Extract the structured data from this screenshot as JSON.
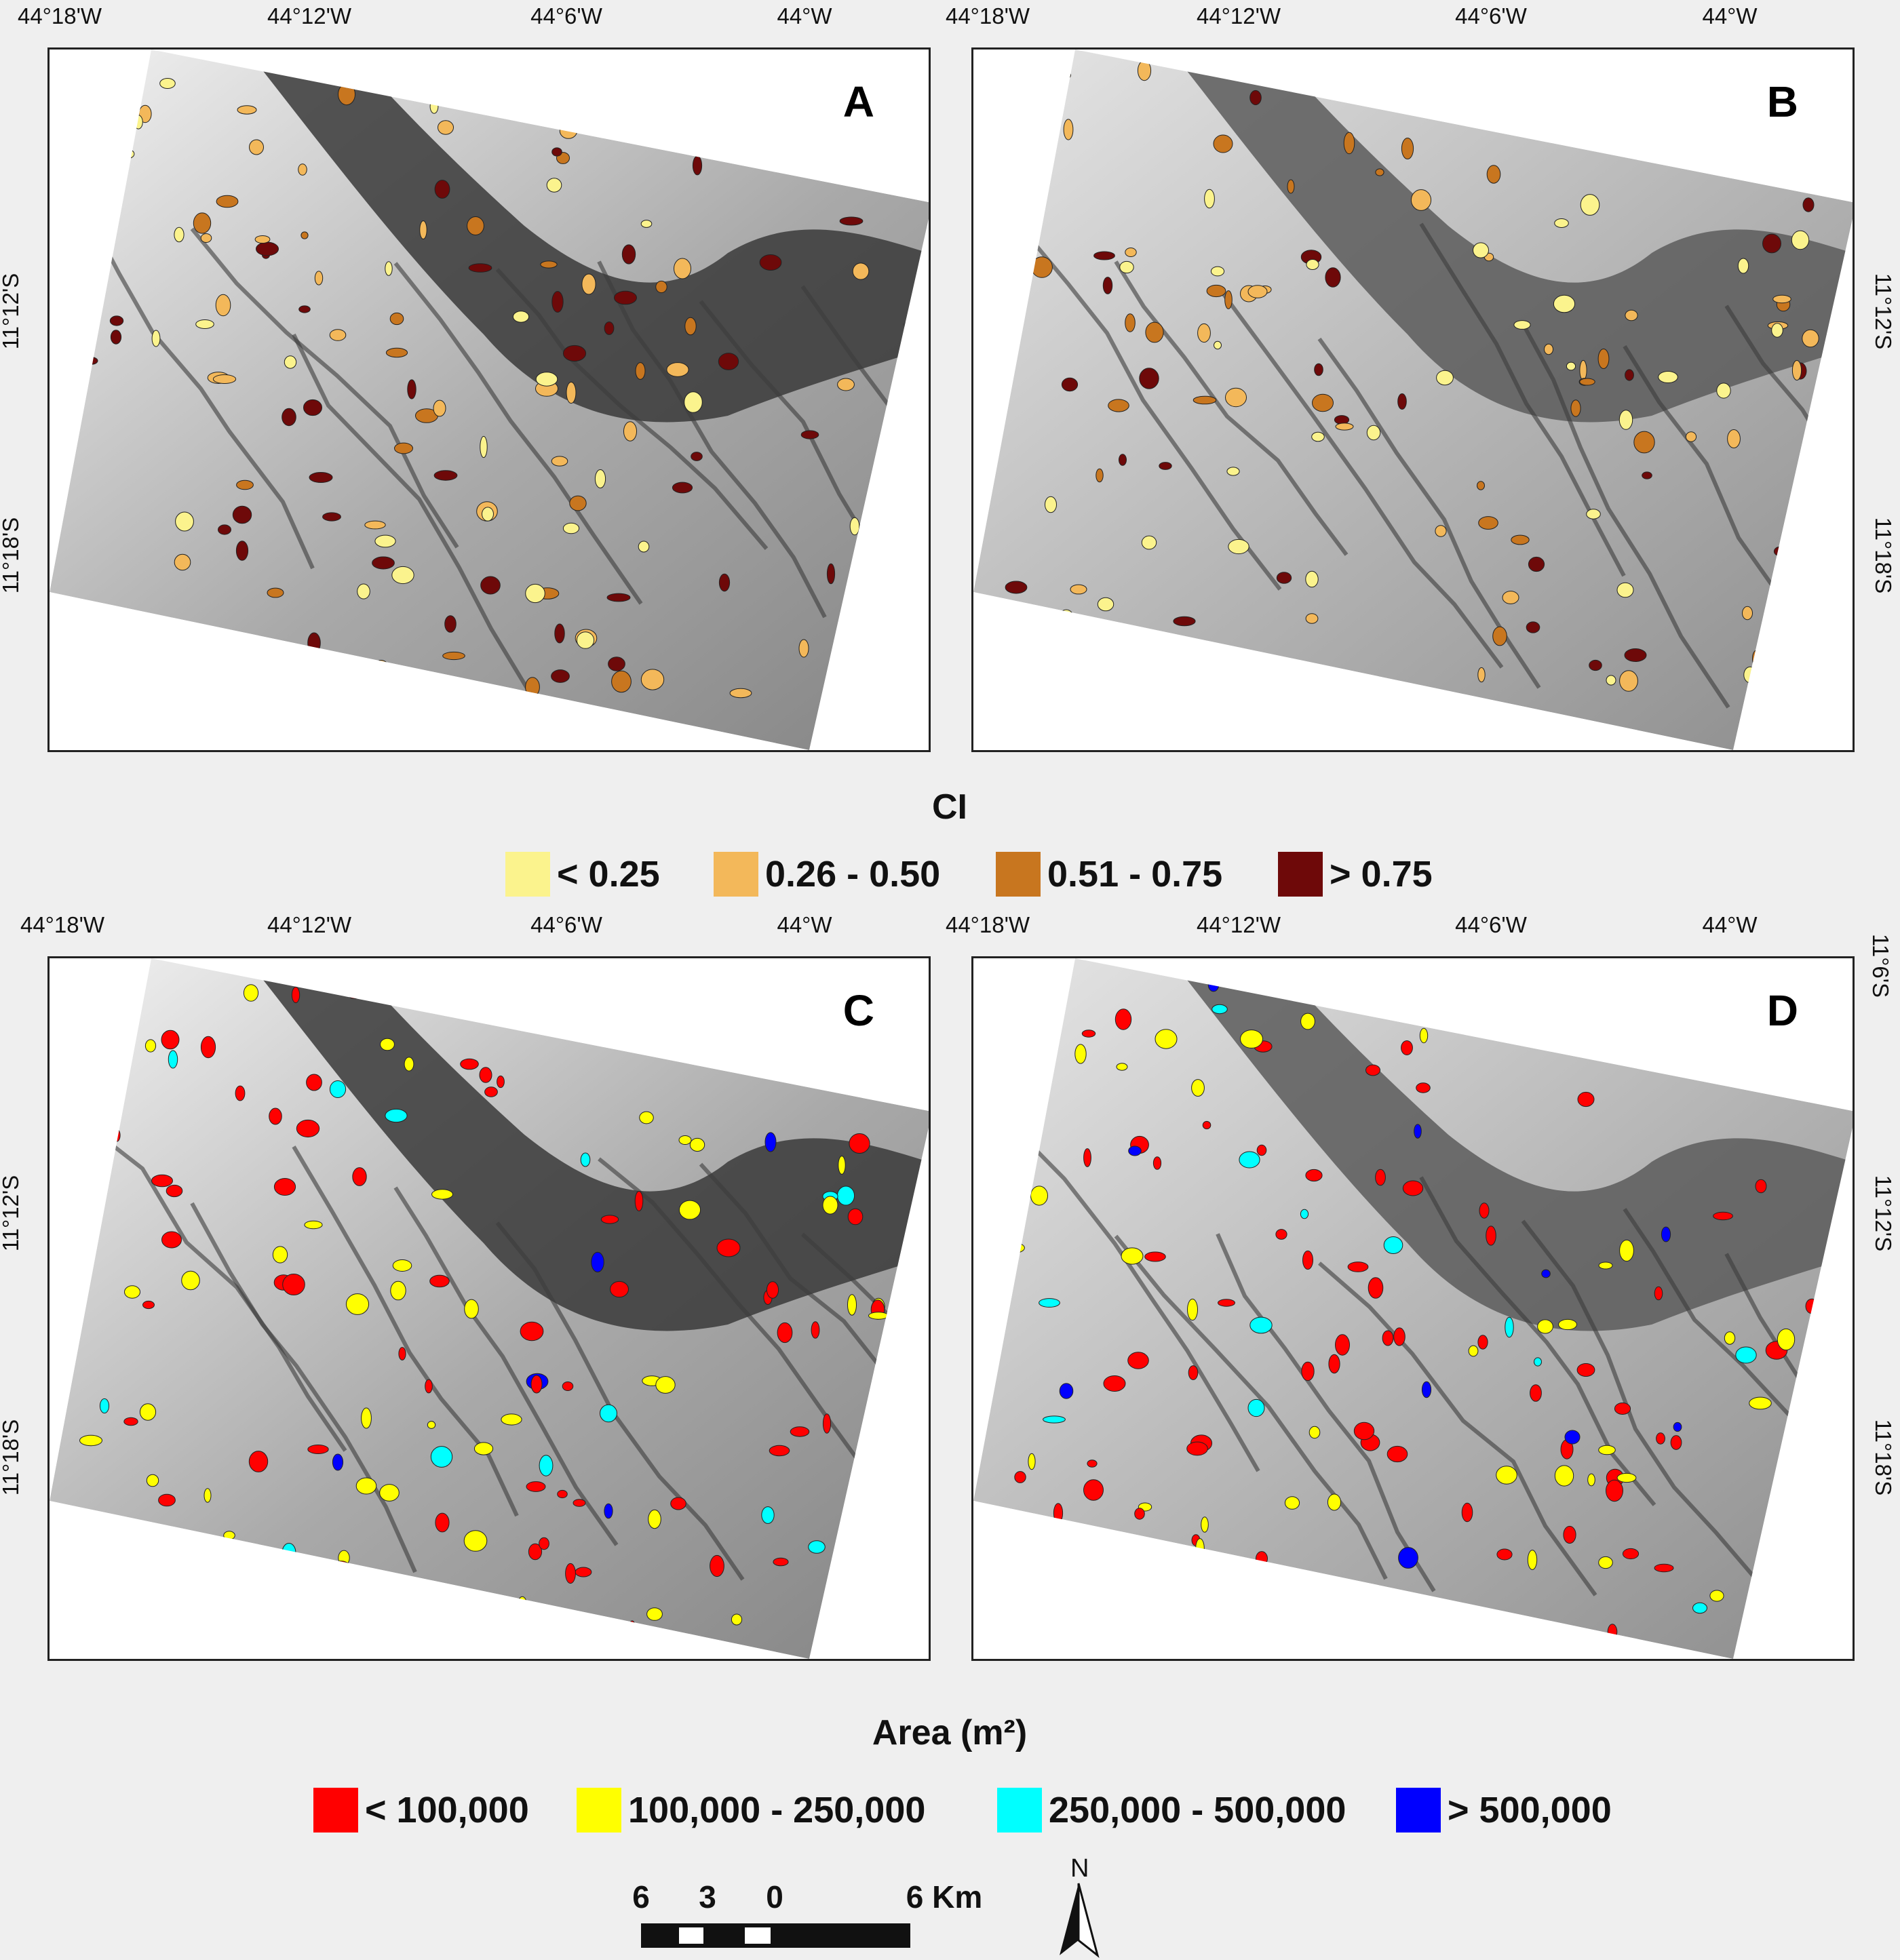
{
  "panels": [
    {
      "label": "A",
      "legend": "ci"
    },
    {
      "label": "B",
      "legend": "ci"
    },
    {
      "label": "C",
      "legend": "area"
    },
    {
      "label": "D",
      "legend": "area"
    }
  ],
  "axes": {
    "lon_ticks": [
      "44°18'W",
      "44°12'W",
      "44°6'W",
      "44°W"
    ],
    "lat_ticks": [
      "11°12'S",
      "11°18'S"
    ],
    "lat_extra_d": "11°6'S"
  },
  "ci_legend": {
    "title": "CI",
    "items": [
      {
        "label": "< 0.25",
        "color": "#fbf38d"
      },
      {
        "label": "0.26 - 0.50",
        "color": "#f3b85a"
      },
      {
        "label": "0.51 - 0.75",
        "color": "#c8761f"
      },
      {
        "label": "> 0.75",
        "color": "#6e0909"
      }
    ]
  },
  "area_legend": {
    "title": "Area (m²)",
    "items": [
      {
        "label": "< 100,000",
        "color": "#ff0000"
      },
      {
        "label": "100,000 - 250,000",
        "color": "#ffff00"
      },
      {
        "label": "250,000 - 500,000",
        "color": "#00ffff"
      },
      {
        "label": "> 500,000",
        "color": "#0000ff"
      }
    ]
  },
  "scale_bar": {
    "ticks": [
      "6",
      "3",
      "0",
      "6 Km"
    ]
  },
  "north_arrow": {
    "label": "N"
  }
}
